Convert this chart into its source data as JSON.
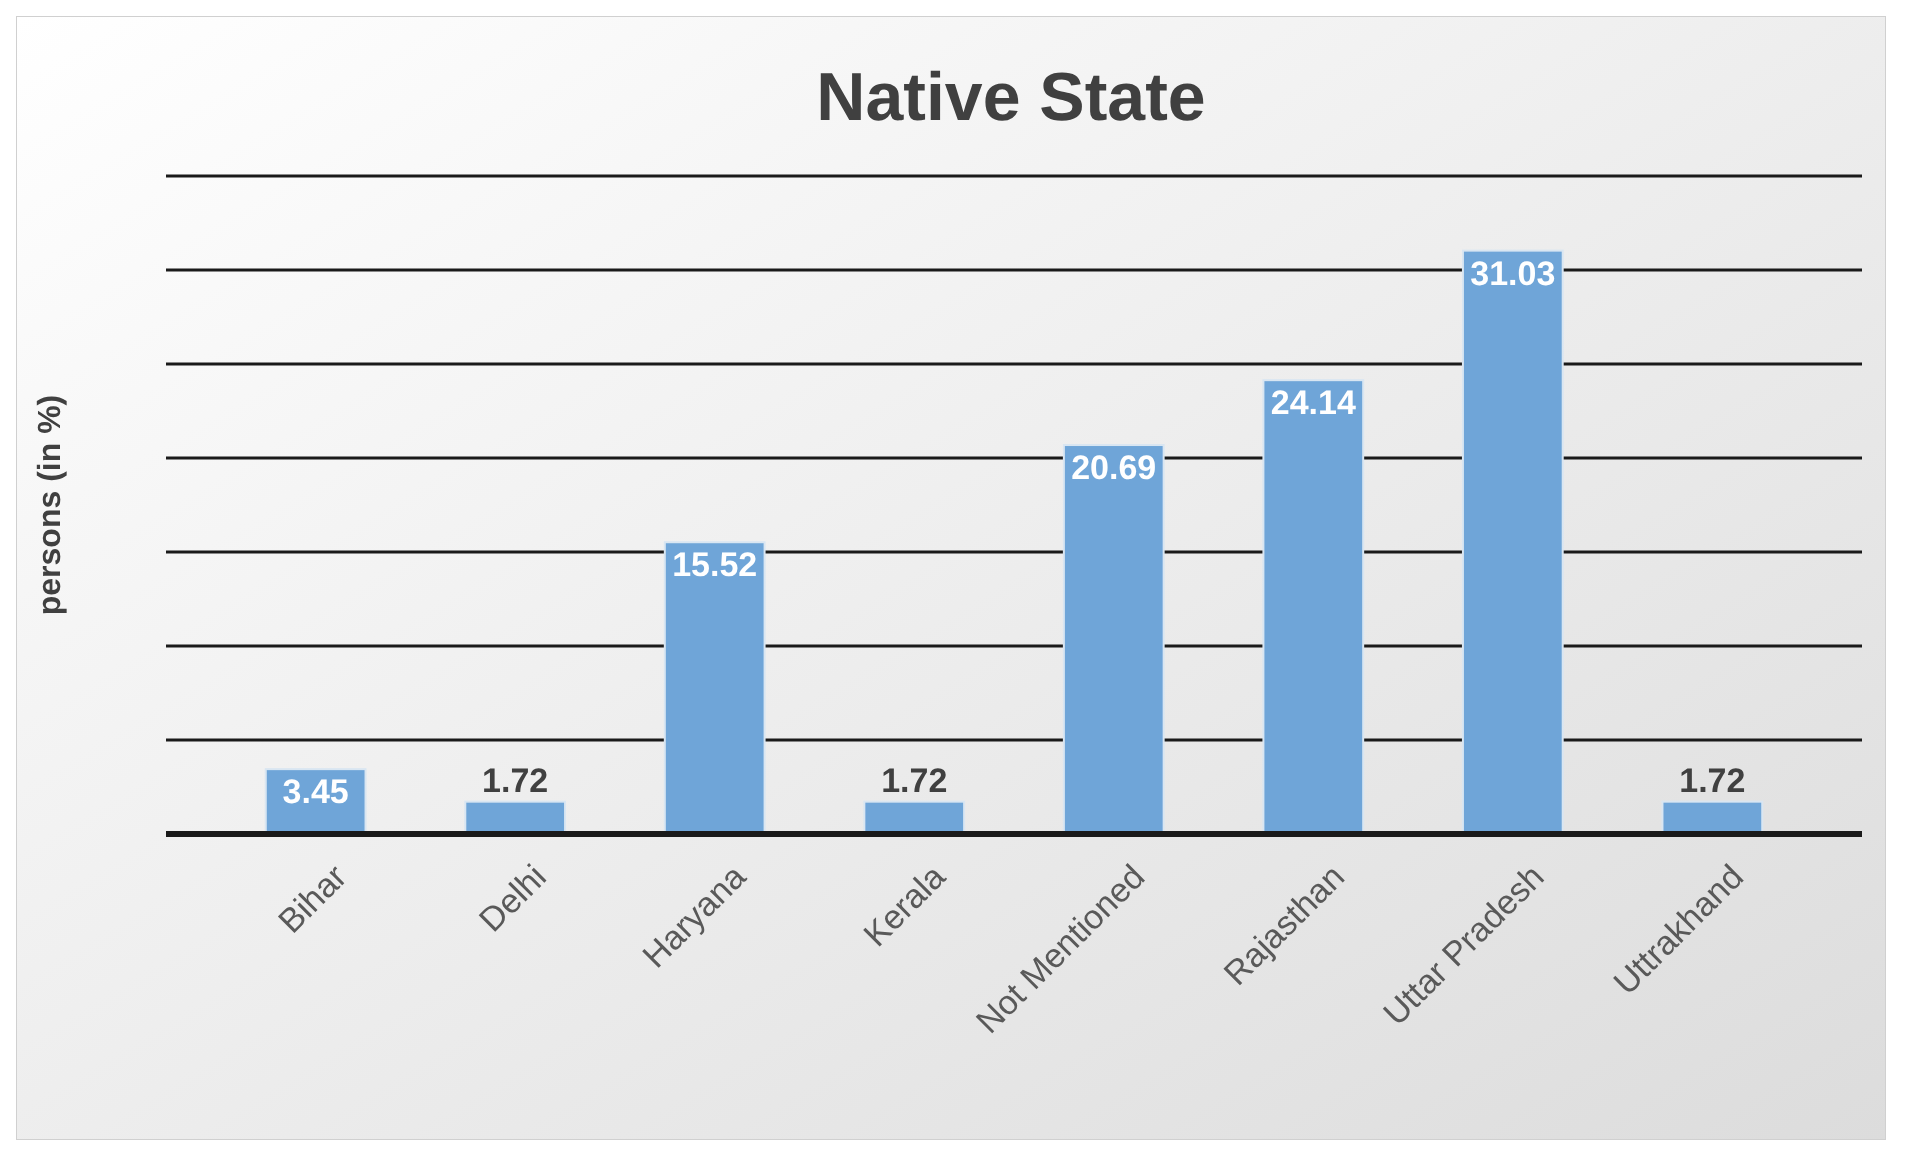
{
  "chart_data": {
    "type": "bar",
    "title": "Native State",
    "ylabel": "persons (in %)",
    "categories": [
      "Bihar",
      "Delhi",
      "Haryana",
      "Kerala",
      "Not Mentioned",
      "Rajasthan",
      "Uttar Pradesh",
      "Uttrakhand"
    ],
    "values": [
      3.45,
      1.72,
      15.52,
      1.72,
      20.69,
      24.14,
      31.03,
      1.72
    ],
    "color": "#6fa5d8",
    "ylim": [
      0,
      35
    ],
    "yticks": [
      {
        "value": 0,
        "label": null
      },
      {
        "value": 5,
        "label": null
      },
      {
        "value": 10,
        "label": null
      },
      {
        "value": 15,
        "label": null
      },
      {
        "value": 20,
        "label": null
      },
      {
        "value": 25,
        "label": null
      },
      {
        "value": 30,
        "label": null
      },
      {
        "value": 35,
        "label": null
      }
    ],
    "tick_labels": "x",
    "grid": "y",
    "data_labels": true
  }
}
